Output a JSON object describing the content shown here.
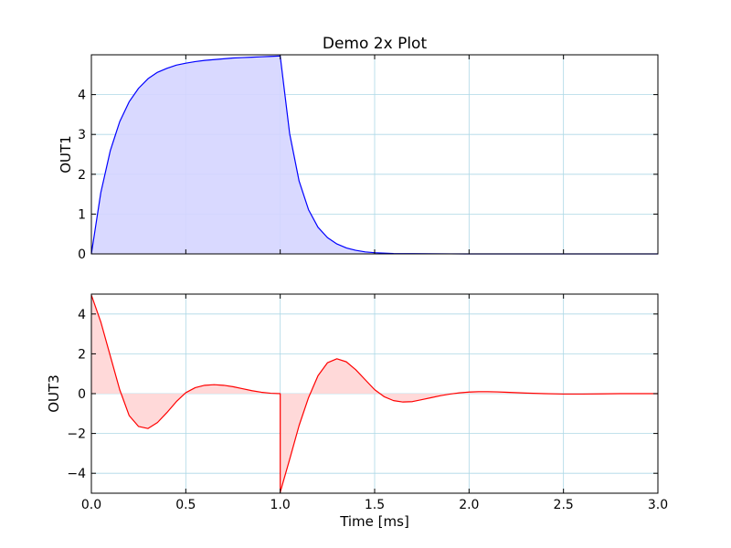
{
  "chart_data": [
    {
      "type": "area",
      "title": "Demo 2x Plot",
      "xlabel": "",
      "ylabel": "OUT1",
      "xlim": [
        0.0,
        3.0
      ],
      "ylim": [
        0,
        5
      ],
      "yticks": [
        0,
        1,
        2,
        3,
        4
      ],
      "grid": true,
      "grid_color": "#add8e6",
      "line_color": "#0000ff",
      "fill_color": "#d5d5ff",
      "series": [
        {
          "x": [
            0.0,
            0.05,
            0.1,
            0.15,
            0.2,
            0.25,
            0.3,
            0.35,
            0.4,
            0.45,
            0.5,
            0.55,
            0.6,
            0.65,
            0.7,
            0.75,
            0.8,
            0.85,
            0.9,
            0.95,
            1.0,
            1.05,
            1.1,
            1.15,
            1.2,
            1.25,
            1.3,
            1.35,
            1.4,
            1.45,
            1.5,
            1.6,
            1.7,
            1.8,
            1.9,
            2.0,
            2.2,
            2.4,
            2.6,
            2.8,
            3.0
          ],
          "y": [
            0.0,
            1.54,
            2.59,
            3.32,
            3.82,
            4.16,
            4.4,
            4.56,
            4.66,
            4.74,
            4.79,
            4.83,
            4.86,
            4.88,
            4.9,
            4.92,
            4.93,
            4.94,
            4.95,
            4.96,
            4.97,
            3.02,
            1.83,
            1.11,
            0.67,
            0.41,
            0.25,
            0.15,
            0.09,
            0.05,
            0.03,
            0.01,
            0.005,
            0.002,
            0.001,
            0.0,
            0.0,
            0.0,
            0.0,
            0.0,
            0.0
          ]
        }
      ]
    },
    {
      "type": "area",
      "xlabel": "Time [ms]",
      "ylabel": "OUT3",
      "xlim": [
        0.0,
        3.0
      ],
      "ylim": [
        -5,
        5
      ],
      "xticks": [
        "0.0",
        "0.5",
        "1.0",
        "1.5",
        "2.0",
        "2.5",
        "3.0"
      ],
      "yticks": [
        "4",
        "2",
        "0",
        "−2",
        "−4"
      ],
      "grid": true,
      "grid_color": "#add8e6",
      "line_color": "#ff0000",
      "fill_color": "#ffd5d5",
      "series": [
        {
          "x": [
            0.0,
            0.05,
            0.1,
            0.15,
            0.2,
            0.25,
            0.3,
            0.35,
            0.4,
            0.45,
            0.5,
            0.55,
            0.6,
            0.65,
            0.7,
            0.75,
            0.8,
            0.85,
            0.9,
            0.95,
            1.0,
            1.0,
            1.05,
            1.1,
            1.15,
            1.2,
            1.25,
            1.3,
            1.35,
            1.4,
            1.45,
            1.5,
            1.55,
            1.6,
            1.65,
            1.7,
            1.75,
            1.8,
            1.85,
            1.9,
            1.95,
            2.0,
            2.05,
            2.1,
            2.15,
            2.2,
            2.3,
            2.4,
            2.5,
            2.6,
            2.7,
            2.8,
            2.9,
            3.0
          ],
          "y": [
            4.95,
            3.6,
            1.9,
            0.2,
            -1.1,
            -1.65,
            -1.75,
            -1.45,
            -0.95,
            -0.4,
            0.05,
            0.3,
            0.42,
            0.45,
            0.42,
            0.35,
            0.25,
            0.15,
            0.07,
            0.02,
            0.0,
            -4.95,
            -3.3,
            -1.6,
            -0.2,
            0.9,
            1.55,
            1.75,
            1.6,
            1.2,
            0.7,
            0.2,
            -0.15,
            -0.35,
            -0.42,
            -0.4,
            -0.3,
            -0.2,
            -0.1,
            -0.02,
            0.04,
            0.08,
            0.1,
            0.1,
            0.09,
            0.07,
            0.03,
            0.0,
            -0.02,
            -0.02,
            -0.01,
            0.0,
            0.0,
            0.0
          ]
        }
      ]
    }
  ]
}
